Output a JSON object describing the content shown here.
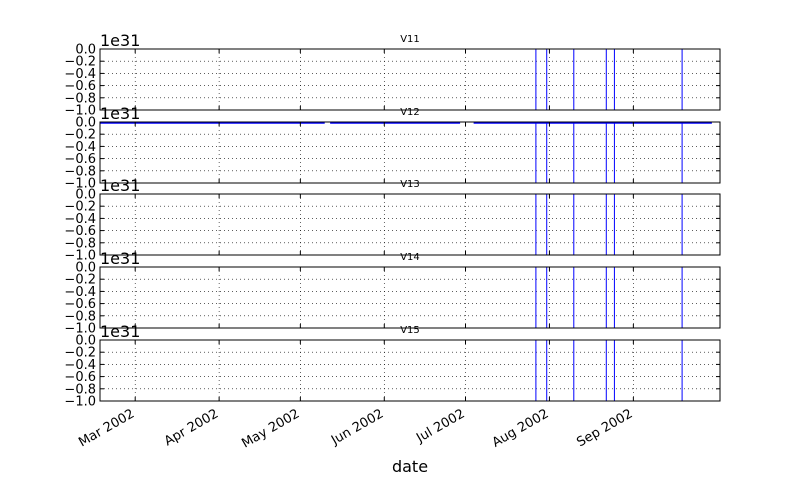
{
  "figure": {
    "xlabel": "date",
    "x_ticks": [
      "Mar 2002",
      "Apr 2002",
      "May 2002",
      "Jun 2002",
      "Jul 2002",
      "Aug 2002",
      "Sep 2002"
    ],
    "x_tick_dates": [
      "2002-03-01",
      "2002-04-01",
      "2002-05-01",
      "2002-06-01",
      "2002-07-01",
      "2002-08-01",
      "2002-09-01"
    ],
    "xlim": [
      "2002-02-16",
      "2002-10-03"
    ],
    "offset_text": "1e31",
    "y_ticks": [
      "0.0",
      "−0.2",
      "−0.4",
      "−0.6",
      "−0.8",
      "−1.0"
    ],
    "y_tick_values": [
      0,
      -0.2,
      -0.4,
      -0.6,
      -0.8,
      -1.0
    ],
    "ylim": [
      -1.0,
      0.0
    ],
    "grid": true,
    "line_color": "#0000ff"
  },
  "chart_data": [
    {
      "type": "line",
      "title": "V11",
      "xlabel": "",
      "ylabel": "",
      "ylim": [
        -1.0,
        0.0
      ],
      "y_scale_factor": "1e31",
      "drop_dates": [
        "2002-07-27",
        "2002-07-31",
        "2002-08-10",
        "2002-08-22",
        "2002-08-25",
        "2002-09-19"
      ],
      "baseline_segments": []
    },
    {
      "type": "line",
      "title": "V12",
      "xlabel": "",
      "ylabel": "",
      "ylim": [
        -1.0,
        0.0
      ],
      "y_scale_factor": "1e31",
      "drop_dates": [
        "2002-07-27",
        "2002-07-31",
        "2002-08-10",
        "2002-08-22",
        "2002-08-25",
        "2002-09-19"
      ],
      "baseline_segments": [
        [
          "2002-02-16",
          "2002-05-10"
        ],
        [
          "2002-05-12",
          "2002-06-29"
        ],
        [
          "2002-07-04",
          "2002-09-30"
        ]
      ]
    },
    {
      "type": "line",
      "title": "V13",
      "xlabel": "",
      "ylabel": "",
      "ylim": [
        -1.0,
        0.0
      ],
      "y_scale_factor": "1e31",
      "drop_dates": [
        "2002-07-27",
        "2002-07-31",
        "2002-08-10",
        "2002-08-22",
        "2002-08-25",
        "2002-09-19"
      ],
      "baseline_segments": []
    },
    {
      "type": "line",
      "title": "V14",
      "xlabel": "",
      "ylabel": "",
      "ylim": [
        -1.0,
        0.0
      ],
      "y_scale_factor": "1e31",
      "drop_dates": [
        "2002-07-27",
        "2002-07-31",
        "2002-08-10",
        "2002-08-22",
        "2002-08-25",
        "2002-09-19"
      ],
      "baseline_segments": []
    },
    {
      "type": "line",
      "title": "V15",
      "xlabel": "",
      "ylabel": "",
      "ylim": [
        -1.0,
        0.0
      ],
      "y_scale_factor": "1e31",
      "drop_dates": [
        "2002-07-27",
        "2002-07-31",
        "2002-08-10",
        "2002-08-22",
        "2002-08-25",
        "2002-09-19"
      ],
      "baseline_segments": []
    }
  ]
}
